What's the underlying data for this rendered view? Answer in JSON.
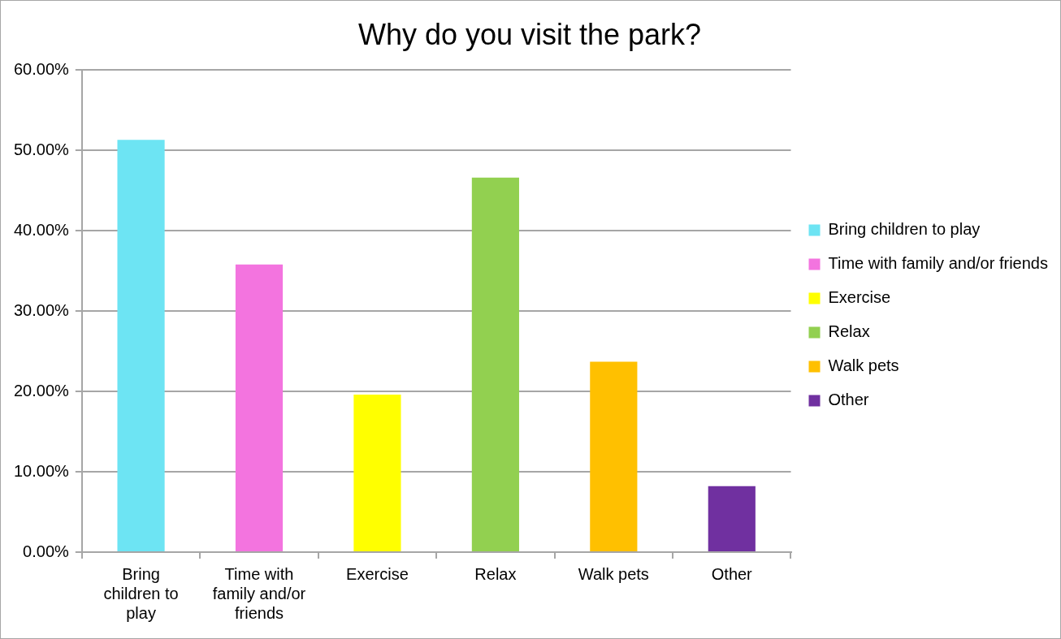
{
  "chart_data": {
    "type": "bar",
    "title": "Why do you visit the park?",
    "categories": [
      "Bring children to play",
      "Time with family and/or friends",
      "Exercise",
      "Relax",
      "Walk pets",
      "Other"
    ],
    "series": [
      {
        "name": "Bring children to play",
        "color": "#6de4f3",
        "values": [
          51.3,
          null,
          null,
          null,
          null,
          null
        ]
      },
      {
        "name": "Time with family and/or friends",
        "color": "#f374df",
        "values": [
          null,
          35.8,
          null,
          null,
          null,
          null
        ]
      },
      {
        "name": "Exercise",
        "color": "#ffff00",
        "values": [
          null,
          null,
          19.6,
          null,
          null,
          null
        ]
      },
      {
        "name": "Relax",
        "color": "#92d050",
        "values": [
          null,
          null,
          null,
          46.6,
          null,
          null
        ]
      },
      {
        "name": "Walk pets",
        "color": "#ffc000",
        "values": [
          null,
          null,
          null,
          null,
          23.7,
          null
        ]
      },
      {
        "name": "Other",
        "color": "#7030a0",
        "values": [
          null,
          null,
          null,
          null,
          null,
          8.2
        ]
      }
    ],
    "ylim": [
      0,
      60
    ],
    "yticks": [
      {
        "value": 0,
        "label": "0.00%"
      },
      {
        "value": 10,
        "label": "10.00%"
      },
      {
        "value": 20,
        "label": "20.00%"
      },
      {
        "value": 30,
        "label": "30.00%"
      },
      {
        "value": 40,
        "label": "40.00%"
      },
      {
        "value": 50,
        "label": "50.00%"
      },
      {
        "value": 60,
        "label": "60.00%"
      }
    ],
    "grid": "y",
    "legend": "right"
  }
}
